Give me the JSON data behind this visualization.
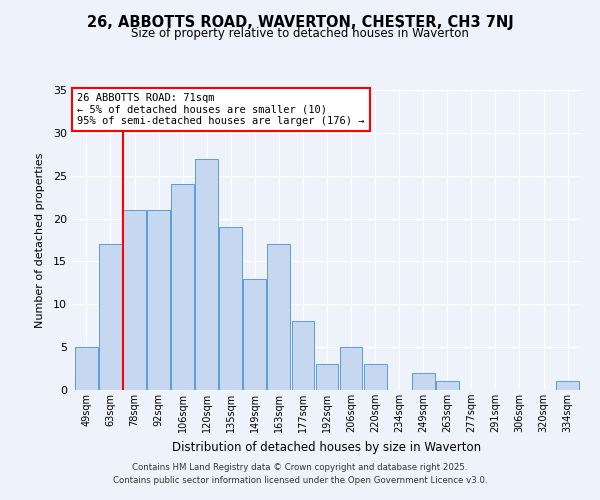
{
  "title": "26, ABBOTTS ROAD, WAVERTON, CHESTER, CH3 7NJ",
  "subtitle": "Size of property relative to detached houses in Waverton",
  "xlabel": "Distribution of detached houses by size in Waverton",
  "ylabel": "Number of detached properties",
  "bar_labels": [
    "49sqm",
    "63sqm",
    "78sqm",
    "92sqm",
    "106sqm",
    "120sqm",
    "135sqm",
    "149sqm",
    "163sqm",
    "177sqm",
    "192sqm",
    "206sqm",
    "220sqm",
    "234sqm",
    "249sqm",
    "263sqm",
    "277sqm",
    "291sqm",
    "306sqm",
    "320sqm",
    "334sqm"
  ],
  "bar_values": [
    5,
    17,
    21,
    21,
    24,
    27,
    19,
    13,
    17,
    8,
    3,
    5,
    3,
    0,
    2,
    1,
    0,
    0,
    0,
    0,
    1
  ],
  "bar_color": "#c5d8f0",
  "bar_edgecolor": "#5b9bd5",
  "annotation_title": "26 ABBOTTS ROAD: 71sqm",
  "annotation_line1": "← 5% of detached houses are smaller (10)",
  "annotation_line2": "95% of semi-detached houses are larger (176) →",
  "vline_x": 1.5,
  "ylim": [
    0,
    35
  ],
  "yticks": [
    0,
    5,
    10,
    15,
    20,
    25,
    30,
    35
  ],
  "bg_color": "#eef2fb",
  "footer1": "Contains HM Land Registry data © Crown copyright and database right 2025.",
  "footer2": "Contains public sector information licensed under the Open Government Licence v3.0."
}
